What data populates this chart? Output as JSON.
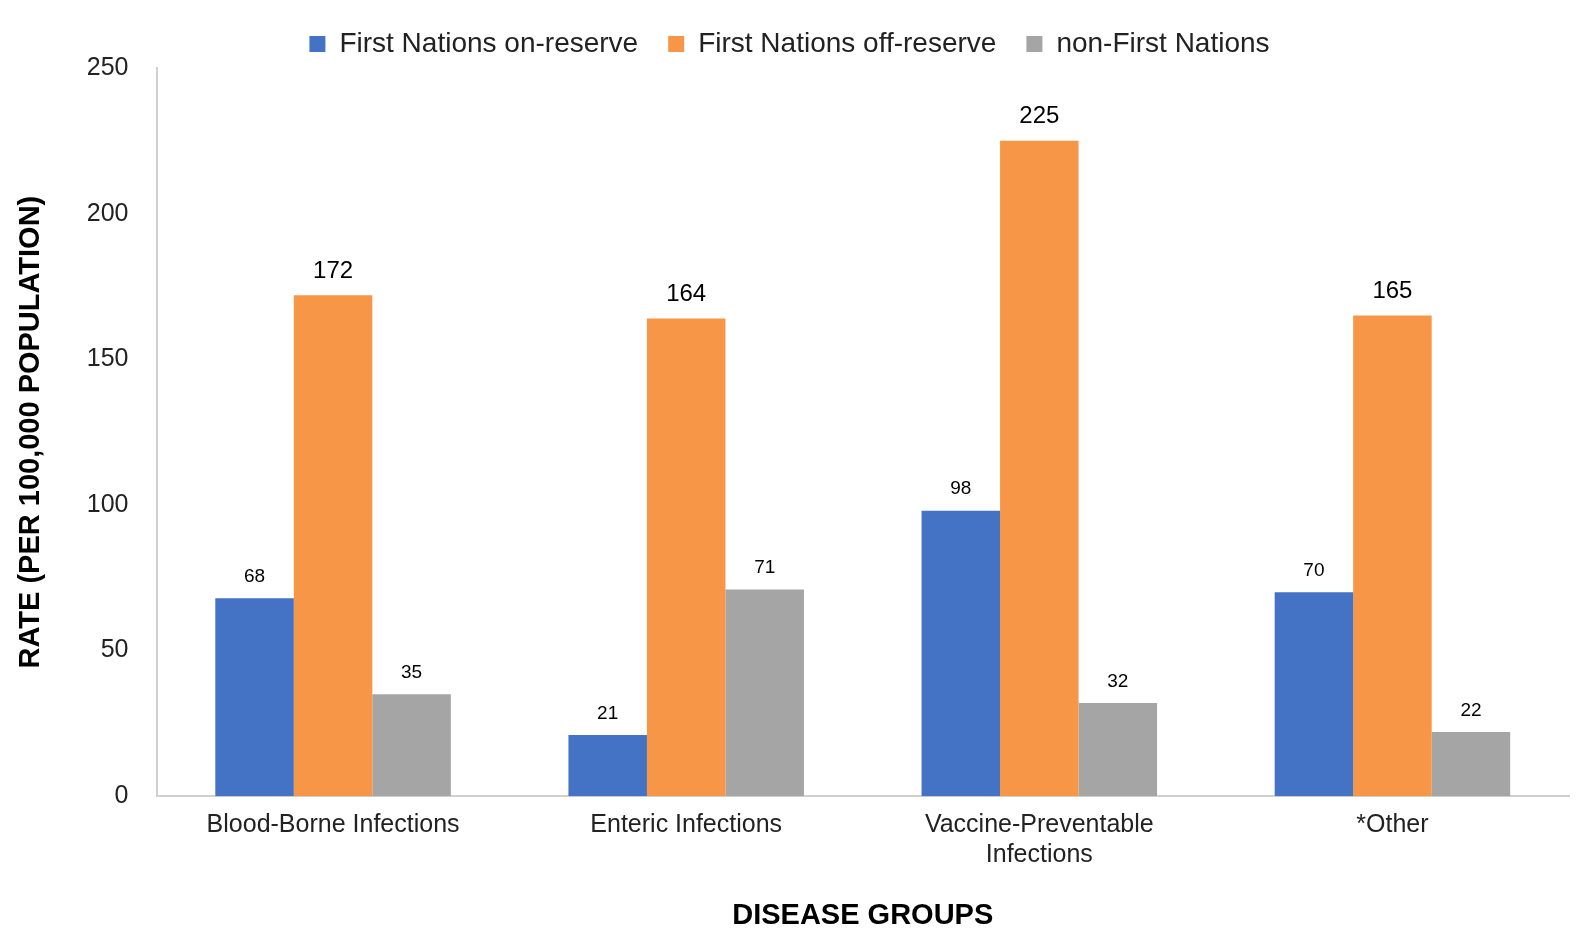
{
  "chart_data": {
    "type": "bar",
    "xlabel": "DISEASE GROUPS",
    "ylabel": "RATE (PER 100,000 POPULATION)",
    "categories": [
      "Blood-Borne Infections",
      "Enteric Infections",
      "Vaccine-Preventable Infections",
      "*Other"
    ],
    "series": [
      {
        "name": "First Nations on-reserve",
        "color": "#4472c4",
        "values": [
          68,
          21,
          98,
          70
        ]
      },
      {
        "name": "First Nations off-reserve",
        "color": "#f79646",
        "values": [
          172,
          164,
          225,
          165
        ]
      },
      {
        "name": "non-First Nations",
        "color": "#a5a5a5",
        "values": [
          35,
          71,
          32,
          22
        ]
      }
    ],
    "ylim": [
      0,
      250
    ],
    "yticks": [
      0,
      50,
      100,
      150,
      200,
      250
    ],
    "grid": false,
    "legend": "top",
    "data_labels": true
  }
}
